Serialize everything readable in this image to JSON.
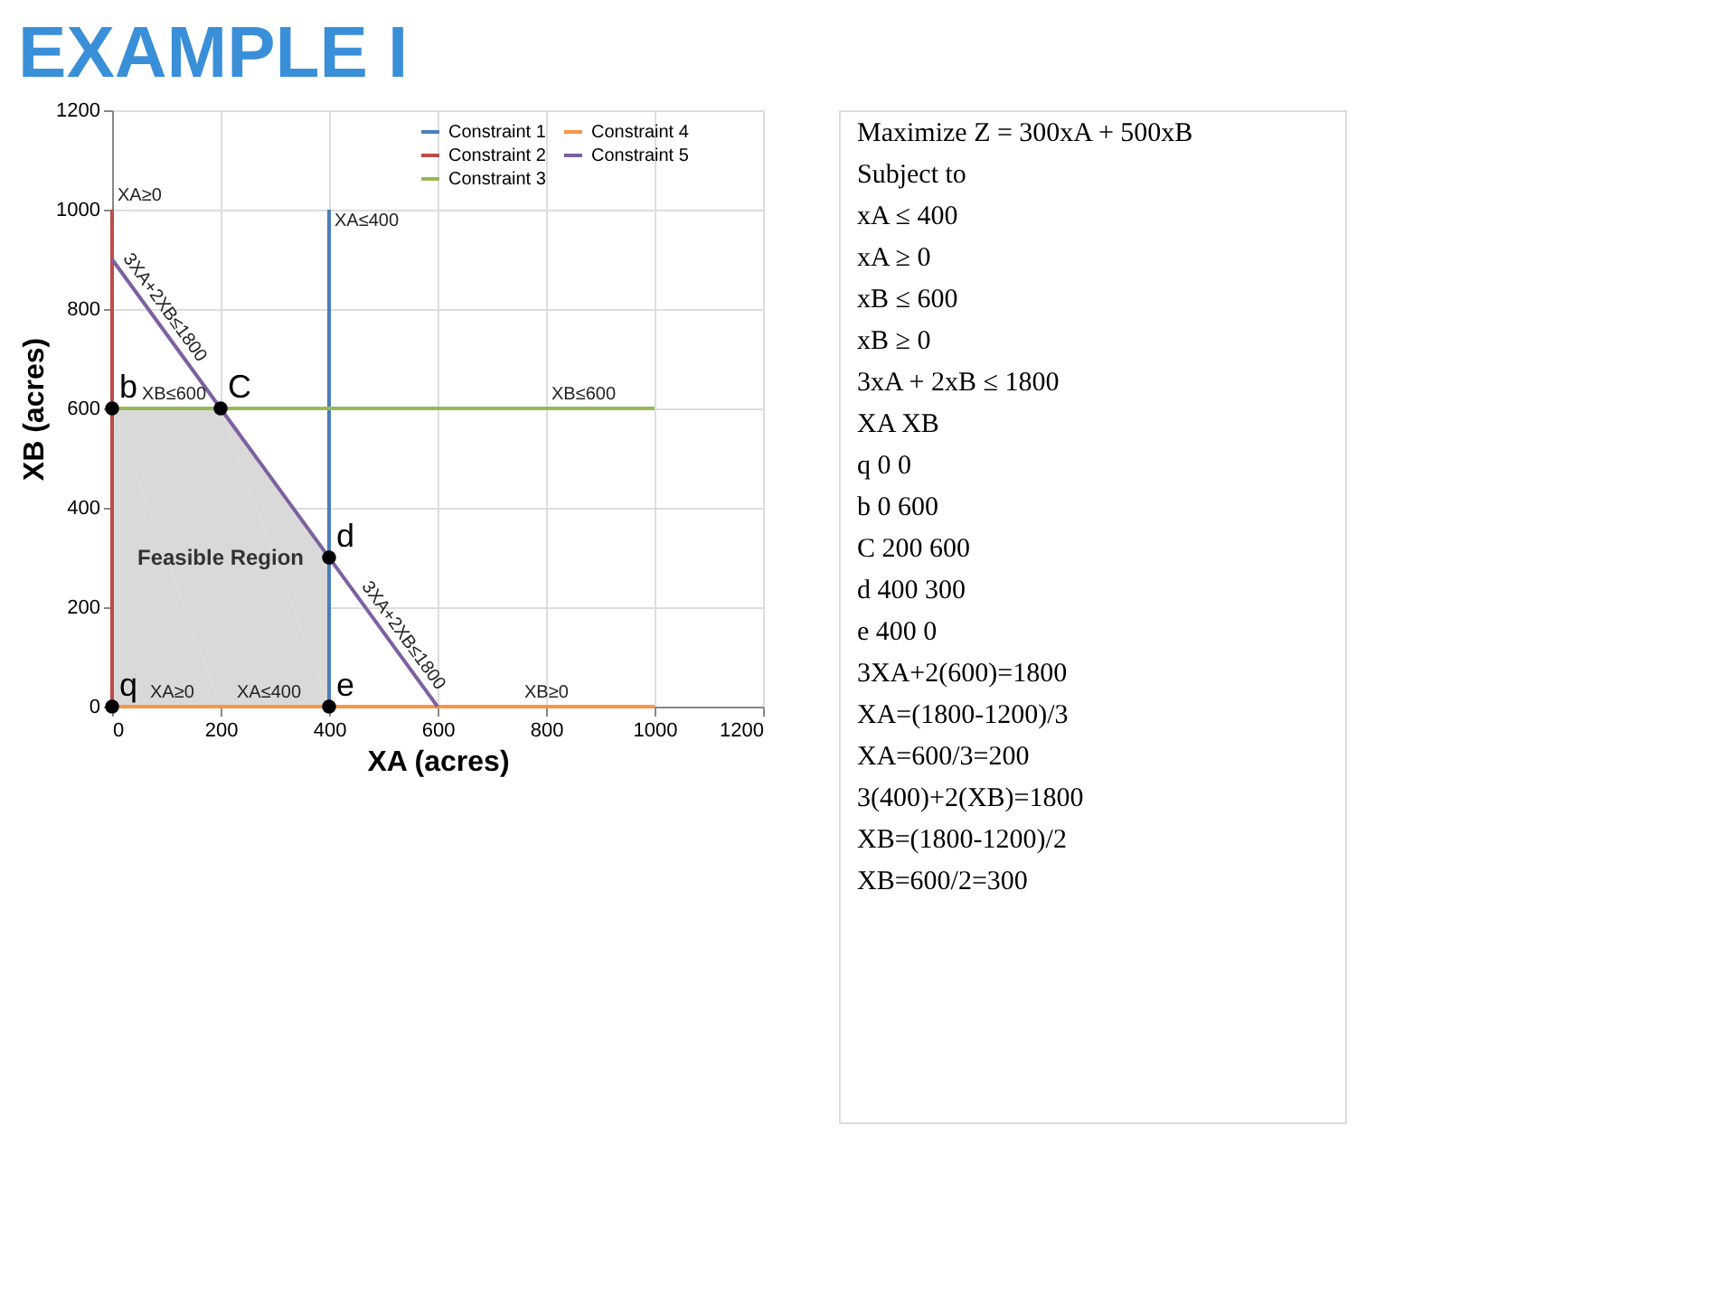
{
  "chart_data": {
    "type": "line",
    "title": "EXAMPLE I",
    "xlabel": "XA (acres)",
    "ylabel": "XB (acres)",
    "xlim": [
      0,
      1200
    ],
    "ylim": [
      0,
      1200
    ],
    "xticks": [
      0,
      200,
      400,
      600,
      800,
      1000,
      1200
    ],
    "yticks": [
      0,
      200,
      400,
      600,
      800,
      1000,
      1200
    ],
    "grid": true,
    "legend": "top right",
    "line_style": "solid",
    "series": [
      {
        "type": "area",
        "name": "Feasible Region",
        "color": "#d9d9d9",
        "x": [
          0,
          200,
          400,
          400
        ],
        "values": [
          600,
          600,
          300,
          0
        ]
      },
      {
        "name": "Constraint 1",
        "color": "#4a7ebb",
        "x": [
          400,
          400
        ],
        "values": [
          0,
          1000
        ]
      },
      {
        "name": "Constraint 2",
        "color": "#be4b48",
        "x": [
          0,
          0
        ],
        "values": [
          0,
          1000
        ]
      },
      {
        "name": "Constraint 3",
        "color": "#98b954",
        "x": [
          0,
          1000
        ],
        "values": [
          600,
          600
        ]
      },
      {
        "name": "Constraint 4",
        "color": "#f79646",
        "x": [
          0,
          1000
        ],
        "values": [
          0,
          0
        ]
      },
      {
        "name": "Constraint 5",
        "color": "#7d60a0",
        "x": [
          0,
          600
        ],
        "values": [
          900,
          0
        ]
      },
      {
        "type": "scatter",
        "marker": "circle",
        "color": "#000000",
        "x": [
          0,
          0,
          200,
          400,
          400
        ],
        "values": [
          0,
          600,
          600,
          300,
          0
        ],
        "value_labels": [
          "q",
          "b",
          "C",
          "d",
          "e"
        ]
      }
    ],
    "annotations": [
      {
        "text": "XA≥0",
        "x": 0,
        "y": 1000
      },
      {
        "text": "XA≤400",
        "x": 400,
        "y": 950
      },
      {
        "text": "XB≤600",
        "x": 45,
        "y": 600
      },
      {
        "text": "XB≤600",
        "x": 800,
        "y": 600
      },
      {
        "text": "3XA+2XB≤1800",
        "x": 0,
        "y": 900
      },
      {
        "text": "3XA+2XB≤1800",
        "x": 440,
        "y": 240
      },
      {
        "text": "XA≥0",
        "x": 60,
        "y": 0
      },
      {
        "text": "XA≤400",
        "x": 220,
        "y": 0
      },
      {
        "text": "XB≥0",
        "x": 750,
        "y": 0
      },
      "Maximize Z = 300xA + 500xB",
      "Subject to",
      "xA ≤ 400",
      "xA ≥ 0",
      "xB ≤ 600",
      "xB ≥ 0",
      "3xA + 2xB ≤ 1800",
      "XA   XB",
      "q   0   0",
      "b   0   600",
      "C   200   600",
      "d   400   300",
      "e   400   0",
      "3XA+2(600)=1800",
      "XA=(1800-1200)/3",
      "XA=600/3=200",
      "3(400)+2(XB)=1800",
      "XB=(1800-1200)/2",
      "XB=600/2=300"
    ]
  }
}
